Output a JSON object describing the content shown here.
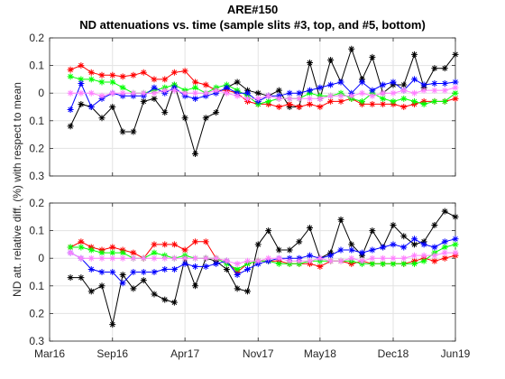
{
  "figure": {
    "title_line1": "ARE#150",
    "title_line2": "ND attenuations vs. time (sample slits #3, top, and #5, bottom)",
    "ylabel": "ND att. relative diff. (%) with respect to mean"
  },
  "chart_data": [
    {
      "type": "line",
      "panel": "top",
      "marker": "asterisk",
      "grid": true,
      "xlim": [
        "2016-03-01",
        "2019-06-01"
      ],
      "ylim": [
        -0.3,
        0.2
      ],
      "yticks": [
        0.2,
        0.1,
        0,
        -0.1,
        -0.2,
        -0.3
      ],
      "ytick_labels": [
        "0.2",
        "0.1",
        "0",
        "0.1",
        "0.2",
        "0.3"
      ],
      "xticks": [
        "2016-03-01",
        "2016-09-01",
        "2017-04-01",
        "2017-11-01",
        "2018-05-01",
        "2018-12-01",
        "2019-06-01"
      ],
      "xtick_labels": [
        "Mar16",
        "Sep16",
        "Apr17",
        "Nov17",
        "May18",
        "Dec18",
        "Jun19"
      ],
      "series": [
        {
          "color": "#000000",
          "x": [
            "2016-05-01",
            "2016-06-01",
            "2016-07-01",
            "2016-08-01",
            "2016-09-01",
            "2016-10-01",
            "2016-11-01",
            "2016-12-01",
            "2017-01-01",
            "2017-02-01",
            "2017-03-01",
            "2017-04-01",
            "2017-05-01",
            "2017-06-01",
            "2017-07-01",
            "2017-08-01",
            "2017-09-01",
            "2017-10-01",
            "2017-11-01",
            "2017-12-01",
            "2018-01-01",
            "2018-02-01",
            "2018-03-01",
            "2018-04-01",
            "2018-05-01",
            "2018-06-01",
            "2018-07-01",
            "2018-08-01",
            "2018-09-01",
            "2018-10-01",
            "2018-11-01",
            "2018-12-01",
            "2019-01-01",
            "2019-02-01",
            "2019-03-01",
            "2019-04-01",
            "2019-05-01",
            "2019-06-01"
          ],
          "y": [
            -0.12,
            -0.04,
            -0.05,
            -0.09,
            -0.05,
            -0.14,
            -0.14,
            -0.03,
            -0.02,
            -0.07,
            0.03,
            -0.09,
            -0.22,
            -0.09,
            -0.07,
            0.02,
            0.04,
            0.01,
            0.0,
            -0.01,
            0.01,
            -0.05,
            -0.05,
            0.11,
            -0.02,
            0.12,
            0.04,
            0.16,
            0.05,
            0.13,
            0.0,
            0.03,
            0.03,
            0.14,
            0.02,
            0.09,
            0.09,
            0.14
          ]
        },
        {
          "color": "#ff0000",
          "x": [
            "2016-05-01",
            "2016-06-01",
            "2016-07-01",
            "2016-08-01",
            "2016-09-01",
            "2016-10-01",
            "2016-11-01",
            "2016-12-01",
            "2017-01-01",
            "2017-02-01",
            "2017-03-01",
            "2017-04-01",
            "2017-05-01",
            "2017-06-01",
            "2017-07-01",
            "2017-08-01",
            "2017-09-01",
            "2017-10-01",
            "2017-11-01",
            "2017-12-01",
            "2018-01-01",
            "2018-02-01",
            "2018-03-01",
            "2018-04-01",
            "2018-05-01",
            "2018-06-01",
            "2018-07-01",
            "2018-08-01",
            "2018-09-01",
            "2018-10-01",
            "2018-11-01",
            "2018-12-01",
            "2019-01-01",
            "2019-02-01",
            "2019-03-01",
            "2019-04-01",
            "2019-05-01",
            "2019-06-01"
          ],
          "y": [
            0.085,
            0.1,
            0.075,
            0.065,
            0.065,
            0.06,
            0.065,
            0.075,
            0.05,
            0.05,
            0.075,
            0.08,
            0.04,
            0.03,
            0.01,
            0.01,
            0.0,
            -0.03,
            -0.04,
            -0.04,
            -0.05,
            -0.04,
            -0.05,
            -0.04,
            -0.05,
            -0.03,
            -0.03,
            -0.02,
            -0.04,
            -0.04,
            -0.04,
            -0.04,
            -0.05,
            -0.04,
            -0.03,
            -0.03,
            -0.03,
            -0.02
          ]
        },
        {
          "color": "#00ff00",
          "x": [
            "2016-05-01",
            "2016-06-01",
            "2016-07-01",
            "2016-08-01",
            "2016-09-01",
            "2016-10-01",
            "2016-11-01",
            "2016-12-01",
            "2017-01-01",
            "2017-02-01",
            "2017-03-01",
            "2017-04-01",
            "2017-05-01",
            "2017-06-01",
            "2017-07-01",
            "2017-08-01",
            "2017-09-01",
            "2017-10-01",
            "2017-11-01",
            "2017-12-01",
            "2018-01-01",
            "2018-02-01",
            "2018-03-01",
            "2018-04-01",
            "2018-05-01",
            "2018-06-01",
            "2018-07-01",
            "2018-08-01",
            "2018-09-01",
            "2018-10-01",
            "2018-11-01",
            "2018-12-01",
            "2019-01-01",
            "2019-02-01",
            "2019-03-01",
            "2019-04-01",
            "2019-05-01",
            "2019-06-01"
          ],
          "y": [
            0.06,
            0.05,
            0.05,
            0.04,
            0.04,
            0.02,
            0.0,
            0.0,
            0.01,
            0.02,
            0.03,
            0.01,
            0.02,
            0.0,
            0.02,
            0.03,
            0.01,
            -0.01,
            -0.04,
            -0.03,
            -0.02,
            -0.02,
            -0.02,
            0.0,
            -0.01,
            -0.01,
            0.0,
            -0.02,
            -0.03,
            0.0,
            -0.02,
            -0.03,
            -0.02,
            -0.03,
            -0.04,
            -0.03,
            -0.03,
            0.0
          ]
        },
        {
          "color": "#0000ff",
          "x": [
            "2016-05-01",
            "2016-06-01",
            "2016-07-01",
            "2016-08-01",
            "2016-09-01",
            "2016-10-01",
            "2016-11-01",
            "2016-12-01",
            "2017-01-01",
            "2017-02-01",
            "2017-03-01",
            "2017-04-01",
            "2017-05-01",
            "2017-06-01",
            "2017-07-01",
            "2017-08-01",
            "2017-09-01",
            "2017-10-01",
            "2017-11-01",
            "2017-12-01",
            "2018-01-01",
            "2018-02-01",
            "2018-03-01",
            "2018-04-01",
            "2018-05-01",
            "2018-06-01",
            "2018-07-01",
            "2018-08-01",
            "2018-09-01",
            "2018-10-01",
            "2018-11-01",
            "2018-12-01",
            "2019-01-01",
            "2019-02-01",
            "2019-03-01",
            "2019-04-01",
            "2019-05-01",
            "2019-06-01"
          ],
          "y": [
            -0.06,
            0.035,
            -0.05,
            -0.02,
            0.0,
            -0.01,
            -0.01,
            -0.01,
            0.02,
            0.0,
            0.02,
            -0.01,
            -0.02,
            -0.01,
            0.0,
            0.02,
            0.0,
            0.0,
            -0.03,
            -0.01,
            -0.01,
            0.0,
            0.0,
            0.01,
            0.02,
            0.03,
            0.04,
            0.0,
            0.04,
            0.01,
            0.03,
            0.04,
            0.01,
            0.05,
            0.03,
            0.035,
            0.035,
            0.04
          ]
        },
        {
          "color": "#ff80ff",
          "x": [
            "2016-05-01",
            "2016-06-01",
            "2016-07-01",
            "2016-08-01",
            "2016-09-01",
            "2016-10-01",
            "2016-11-01",
            "2016-12-01",
            "2017-01-01",
            "2017-02-01",
            "2017-03-01",
            "2017-04-01",
            "2017-05-01",
            "2017-06-01",
            "2017-07-01",
            "2017-08-01",
            "2017-09-01",
            "2017-10-01",
            "2017-11-01",
            "2017-12-01",
            "2018-01-01",
            "2018-02-01",
            "2018-03-01",
            "2018-04-01",
            "2018-05-01",
            "2018-06-01",
            "2018-07-01",
            "2018-08-01",
            "2018-09-01",
            "2018-10-01",
            "2018-11-01",
            "2018-12-01",
            "2019-01-01",
            "2019-02-01",
            "2019-03-01",
            "2019-04-01",
            "2019-05-01",
            "2019-06-01"
          ],
          "y": [
            0.0,
            0.0,
            0.0,
            -0.01,
            0.0,
            0.0,
            0.0,
            0.0,
            0.0,
            0.01,
            0.01,
            0.0,
            0.0,
            0.0,
            0.01,
            0.0,
            -0.01,
            -0.02,
            -0.02,
            -0.01,
            -0.02,
            -0.02,
            -0.02,
            -0.02,
            -0.02,
            -0.01,
            -0.01,
            -0.01,
            0.0,
            -0.01,
            0.0,
            0.0,
            0.01,
            0.0,
            0.01,
            0.01,
            0.01,
            0.02
          ]
        }
      ]
    },
    {
      "type": "line",
      "panel": "bottom",
      "marker": "asterisk",
      "grid": true,
      "xlim": [
        "2016-03-01",
        "2019-06-01"
      ],
      "ylim": [
        -0.3,
        0.2
      ],
      "yticks": [
        0.2,
        0.1,
        0,
        -0.1,
        -0.2,
        -0.3
      ],
      "ytick_labels": [
        "0.2",
        "0.1",
        "0",
        "0.1",
        "0.2",
        "0.3"
      ],
      "xticks": [
        "2016-03-01",
        "2016-09-01",
        "2017-04-01",
        "2017-11-01",
        "2018-05-01",
        "2018-12-01",
        "2019-06-01"
      ],
      "xtick_labels": [
        "Mar16",
        "Sep16",
        "Apr17",
        "Nov17",
        "May18",
        "Dec18",
        "Jun19"
      ],
      "series": [
        {
          "color": "#000000",
          "x": [
            "2016-05-01",
            "2016-06-01",
            "2016-07-01",
            "2016-08-01",
            "2016-09-01",
            "2016-10-01",
            "2016-11-01",
            "2016-12-01",
            "2017-01-01",
            "2017-02-01",
            "2017-03-01",
            "2017-04-01",
            "2017-05-01",
            "2017-06-01",
            "2017-07-01",
            "2017-08-01",
            "2017-09-01",
            "2017-10-01",
            "2017-11-01",
            "2017-12-01",
            "2018-01-01",
            "2018-02-01",
            "2018-03-01",
            "2018-04-01",
            "2018-05-01",
            "2018-06-01",
            "2018-07-01",
            "2018-08-01",
            "2018-09-01",
            "2018-10-01",
            "2018-11-01",
            "2018-12-01",
            "2019-01-01",
            "2019-02-01",
            "2019-03-01",
            "2019-04-01",
            "2019-05-01",
            "2019-06-01"
          ],
          "y": [
            -0.07,
            -0.07,
            -0.12,
            -0.1,
            -0.24,
            -0.06,
            -0.11,
            -0.08,
            -0.13,
            -0.15,
            -0.16,
            0.0,
            -0.1,
            0.0,
            -0.01,
            -0.04,
            -0.11,
            -0.12,
            0.05,
            0.1,
            0.03,
            0.03,
            0.06,
            0.11,
            0.0,
            0.02,
            0.14,
            0.05,
            0.01,
            0.1,
            0.04,
            0.12,
            0.08,
            0.05,
            0.06,
            0.12,
            0.17,
            0.15
          ]
        },
        {
          "color": "#ff0000",
          "x": [
            "2016-05-01",
            "2016-06-01",
            "2016-07-01",
            "2016-08-01",
            "2016-09-01",
            "2016-10-01",
            "2016-11-01",
            "2016-12-01",
            "2017-01-01",
            "2017-02-01",
            "2017-03-01",
            "2017-04-01",
            "2017-05-01",
            "2017-06-01",
            "2017-07-01",
            "2017-08-01",
            "2017-09-01",
            "2017-10-01",
            "2017-11-01",
            "2017-12-01",
            "2018-01-01",
            "2018-02-01",
            "2018-03-01",
            "2018-04-01",
            "2018-05-01",
            "2018-06-01",
            "2018-07-01",
            "2018-08-01",
            "2018-09-01",
            "2018-10-01",
            "2018-11-01",
            "2018-12-01",
            "2019-01-01",
            "2019-02-01",
            "2019-03-01",
            "2019-04-01",
            "2019-05-01",
            "2019-06-01"
          ],
          "y": [
            0.04,
            0.06,
            0.04,
            0.03,
            0.04,
            0.03,
            0.02,
            0.0,
            0.05,
            0.05,
            0.05,
            0.03,
            0.06,
            0.06,
            0.0,
            -0.01,
            -0.05,
            -0.02,
            -0.01,
            -0.01,
            -0.01,
            -0.02,
            -0.02,
            -0.02,
            -0.03,
            -0.01,
            -0.01,
            -0.02,
            -0.01,
            -0.02,
            -0.02,
            -0.02,
            -0.02,
            -0.01,
            0.0,
            -0.01,
            0.0,
            0.01
          ]
        },
        {
          "color": "#00ff00",
          "x": [
            "2016-05-01",
            "2016-06-01",
            "2016-07-01",
            "2016-08-01",
            "2016-09-01",
            "2016-10-01",
            "2016-11-01",
            "2016-12-01",
            "2017-01-01",
            "2017-02-01",
            "2017-03-01",
            "2017-04-01",
            "2017-05-01",
            "2017-06-01",
            "2017-07-01",
            "2017-08-01",
            "2017-09-01",
            "2017-10-01",
            "2017-11-01",
            "2017-12-01",
            "2018-01-01",
            "2018-02-01",
            "2018-03-01",
            "2018-04-01",
            "2018-05-01",
            "2018-06-01",
            "2018-07-01",
            "2018-08-01",
            "2018-09-01",
            "2018-10-01",
            "2018-11-01",
            "2018-12-01",
            "2019-01-01",
            "2019-02-01",
            "2019-03-01",
            "2019-04-01",
            "2019-05-01",
            "2019-06-01"
          ],
          "y": [
            0.04,
            0.04,
            0.03,
            0.02,
            0.02,
            0.02,
            0.0,
            0.0,
            0.02,
            0.01,
            0.0,
            0.01,
            0.0,
            0.0,
            0.0,
            -0.02,
            -0.04,
            -0.02,
            -0.01,
            -0.01,
            -0.02,
            -0.02,
            -0.02,
            -0.01,
            -0.01,
            -0.01,
            -0.01,
            -0.01,
            -0.02,
            -0.02,
            -0.02,
            -0.02,
            -0.02,
            -0.02,
            -0.01,
            0.02,
            0.04,
            0.05
          ]
        },
        {
          "color": "#0000ff",
          "x": [
            "2016-05-01",
            "2016-06-01",
            "2016-07-01",
            "2016-08-01",
            "2016-09-01",
            "2016-10-01",
            "2016-11-01",
            "2016-12-01",
            "2017-01-01",
            "2017-02-01",
            "2017-03-01",
            "2017-04-01",
            "2017-05-01",
            "2017-06-01",
            "2017-07-01",
            "2017-08-01",
            "2017-09-01",
            "2017-10-01",
            "2017-11-01",
            "2017-12-01",
            "2018-01-01",
            "2018-02-01",
            "2018-03-01",
            "2018-04-01",
            "2018-05-01",
            "2018-06-01",
            "2018-07-01",
            "2018-08-01",
            "2018-09-01",
            "2018-10-01",
            "2018-11-01",
            "2018-12-01",
            "2019-01-01",
            "2019-02-01",
            "2019-03-01",
            "2019-04-01",
            "2019-05-01",
            "2019-06-01"
          ],
          "y": [
            0.02,
            0.0,
            -0.04,
            -0.05,
            -0.05,
            -0.09,
            -0.05,
            -0.05,
            -0.05,
            -0.04,
            -0.04,
            -0.02,
            -0.03,
            -0.03,
            -0.02,
            -0.01,
            -0.06,
            -0.04,
            -0.02,
            -0.01,
            0.0,
            0.0,
            0.0,
            0.01,
            0.0,
            0.01,
            0.03,
            0.03,
            0.02,
            0.03,
            0.04,
            0.05,
            0.04,
            0.07,
            0.05,
            0.04,
            0.06,
            0.07
          ]
        },
        {
          "color": "#ff80ff",
          "x": [
            "2016-05-01",
            "2016-06-01",
            "2016-07-01",
            "2016-08-01",
            "2016-09-01",
            "2016-10-01",
            "2016-11-01",
            "2016-12-01",
            "2017-01-01",
            "2017-02-01",
            "2017-03-01",
            "2017-04-01",
            "2017-05-01",
            "2017-06-01",
            "2017-07-01",
            "2017-08-01",
            "2017-09-01",
            "2017-10-01",
            "2017-11-01",
            "2017-12-01",
            "2018-01-01",
            "2018-02-01",
            "2018-03-01",
            "2018-04-01",
            "2018-05-01",
            "2018-06-01",
            "2018-07-01",
            "2018-08-01",
            "2018-09-01",
            "2018-10-01",
            "2018-11-01",
            "2018-12-01",
            "2019-01-01",
            "2019-02-01",
            "2019-03-01",
            "2019-04-01",
            "2019-05-01",
            "2019-06-01"
          ],
          "y": [
            0.02,
            0.0,
            0.0,
            0.0,
            0.0,
            0.0,
            0.0,
            0.0,
            0.0,
            0.0,
            0.0,
            0.0,
            0.0,
            0.0,
            0.0,
            -0.01,
            -0.02,
            -0.01,
            -0.01,
            0.0,
            0.0,
            -0.01,
            -0.01,
            -0.01,
            0.0,
            -0.01,
            -0.01,
            0.0,
            -0.01,
            0.0,
            0.0,
            0.0,
            0.0,
            0.01,
            0.01,
            0.01,
            0.02,
            0.02
          ]
        }
      ]
    }
  ]
}
